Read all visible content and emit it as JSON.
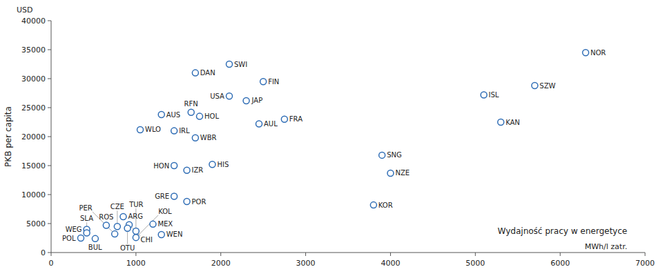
{
  "chart_data": {
    "type": "scatter",
    "ylabel": "PKB per capita",
    "yunit": "USD",
    "xlabel": "Wydajność pracy w energetyce",
    "xunit": "MWh/l zatr.",
    "labels": [
      "NOR",
      "SWI",
      "DAN",
      "FIN",
      "SZW",
      "ISL",
      "USA",
      "JAP",
      "AUS",
      "RFN",
      "HOL",
      "FRA",
      "AUL",
      "KAN",
      "WLO",
      "IRL",
      "WBR",
      "SNG",
      "HON",
      "HIS",
      "IZR",
      "NZE",
      "GRE",
      "POR",
      "KOR",
      "ARG",
      "ROS",
      "CZE",
      "CHI",
      "MEX",
      "WEG",
      "OTU",
      "TUR",
      "SLA",
      "PER",
      "WEN",
      "POL",
      "BUL",
      "KOL"
    ],
    "x": [
      6300,
      2100,
      1700,
      2500,
      5700,
      5100,
      2100,
      2300,
      1300,
      1650,
      1750,
      2750,
      2450,
      5300,
      1050,
      1450,
      1700,
      3900,
      1450,
      1900,
      1600,
      4000,
      1450,
      1600,
      3800,
      850,
      650,
      780,
      920,
      1200,
      420,
      900,
      1000,
      420,
      750,
      1300,
      350,
      520,
      1000
    ],
    "values": [
      34500,
      32500,
      31000,
      29500,
      28800,
      27200,
      27000,
      26200,
      23800,
      24200,
      23500,
      23000,
      22200,
      22500,
      21200,
      21000,
      19800,
      16800,
      15000,
      15200,
      14200,
      13700,
      9700,
      8800,
      8200,
      6200,
      4700,
      4500,
      4800,
      4900,
      4000,
      4200,
      3700,
      3400,
      3200,
      3100,
      2500,
      2400,
      2600
    ],
    "xlim": [
      0,
      7000
    ],
    "ylim": [
      0,
      40000
    ],
    "xticks": [
      0,
      1000,
      2000,
      3000,
      4000,
      5000,
      6000,
      7000
    ],
    "yticks": [
      0,
      5000,
      10000,
      15000,
      20000,
      25000,
      30000,
      35000,
      40000
    ],
    "grid": false
  }
}
